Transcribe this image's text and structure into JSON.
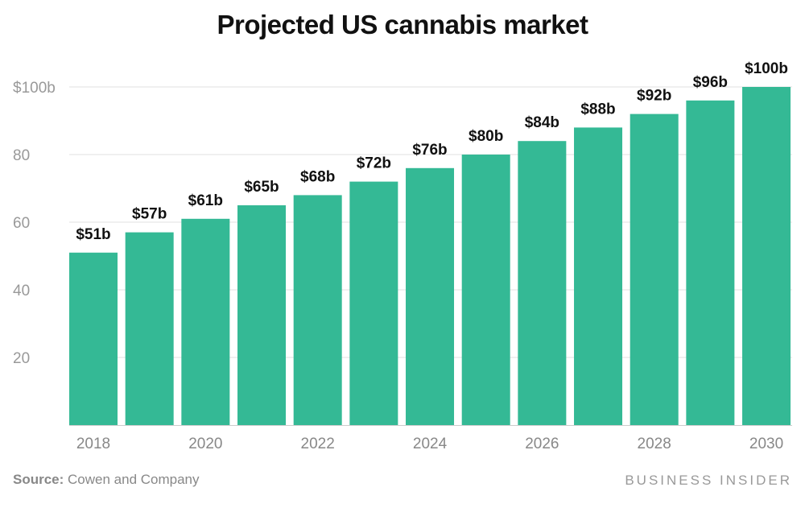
{
  "chart_data": {
    "type": "bar",
    "title": "Projected US cannabis market",
    "categories": [
      "2018",
      "2019",
      "2020",
      "2021",
      "2022",
      "2023",
      "2024",
      "2025",
      "2026",
      "2027",
      "2028",
      "2029",
      "2030"
    ],
    "values": [
      51,
      57,
      61,
      65,
      68,
      72,
      76,
      80,
      84,
      88,
      92,
      96,
      100
    ],
    "data_labels": [
      "$51b",
      "$57b",
      "$61b",
      "$65b",
      "$68b",
      "$72b",
      "$76b",
      "$80b",
      "$84b",
      "$88b",
      "$92b",
      "$96b",
      "$100b"
    ],
    "x_tick_labels": [
      "2018",
      "2020",
      "2022",
      "2024",
      "2026",
      "2028",
      "2030"
    ],
    "y_ticks": [
      20,
      40,
      60,
      80,
      100
    ],
    "y_tick_labels": [
      "20",
      "40",
      "60",
      "80",
      "$100b"
    ],
    "ylim": [
      0,
      100
    ],
    "grid": true,
    "bar_color": "#34b995",
    "xlabel": "",
    "ylabel": ""
  },
  "footer": {
    "source_label": "Source:",
    "source_text": "Cowen and Company",
    "brand": "BUSINESS INSIDER"
  }
}
